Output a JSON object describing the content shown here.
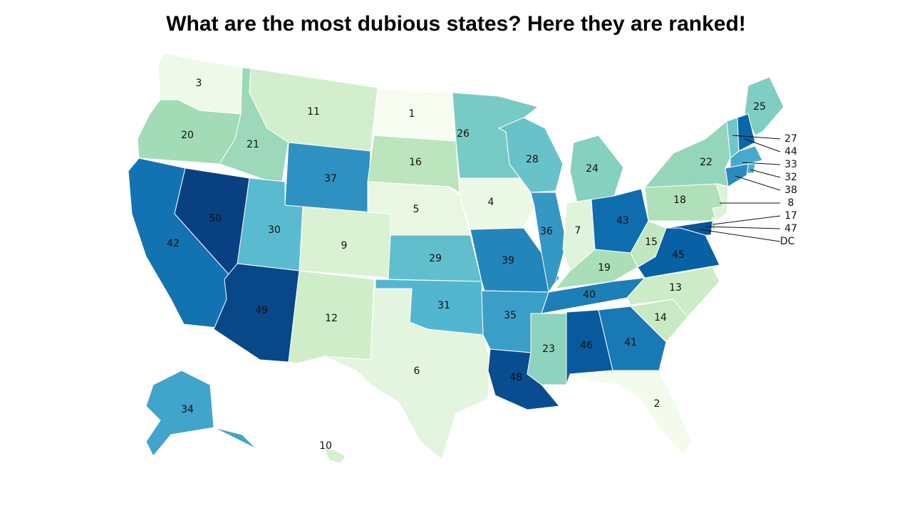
{
  "chart_data": {
    "type": "choropleth",
    "title": "What are the most dubious states? Here they are ranked!",
    "values": [
      3,
      20,
      42,
      50,
      21,
      11,
      37,
      30,
      49,
      9,
      12,
      1,
      16,
      5,
      29,
      31,
      6,
      26,
      4,
      39,
      35,
      48,
      28,
      36,
      24,
      7,
      43,
      19,
      40,
      23,
      46,
      41,
      2,
      14,
      13,
      45,
      15,
      18,
      22,
      25,
      27,
      44,
      33,
      32,
      38,
      8,
      17,
      47,
      34,
      10
    ],
    "annotations": [
      "DC"
    ],
    "color_scale": [
      "#f7fcf0",
      "#e0f3db",
      "#ccebc5",
      "#a8ddb5",
      "#7bccc4",
      "#4eb3d3",
      "#2b8cbe",
      "#0868ac",
      "#084081"
    ]
  }
}
